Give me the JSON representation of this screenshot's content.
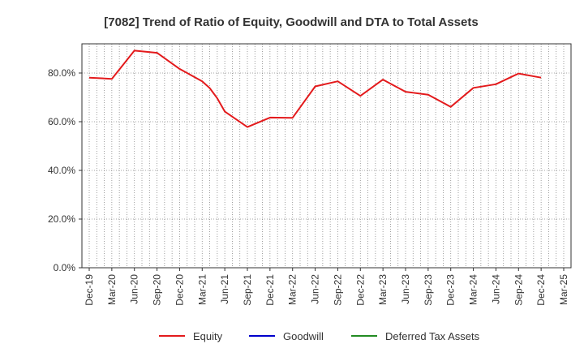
{
  "chart_data": {
    "type": "line",
    "title": "[7082]  Trend of Ratio of Equity, Goodwill and DTA to Total Assets",
    "xlabel": "",
    "ylabel": "",
    "ylim": [
      0,
      92
    ],
    "y_ticks": [
      "0.0%",
      "20.0%",
      "40.0%",
      "60.0%",
      "80.0%"
    ],
    "y_tick_values": [
      0,
      20,
      40,
      60,
      80
    ],
    "x_tick_labels": [
      "Dec-19",
      "Mar-20",
      "Jun-20",
      "Sep-20",
      "Dec-20",
      "Mar-21",
      "Jun-21",
      "Sep-21",
      "Dec-21",
      "Mar-22",
      "Jun-22",
      "Sep-22",
      "Dec-22",
      "Mar-23",
      "Jun-23",
      "Sep-23",
      "Dec-23",
      "Mar-24",
      "Jun-24",
      "Sep-24",
      "Dec-24",
      "Mar-25"
    ],
    "grid": true,
    "legend_position": "bottom",
    "series": [
      {
        "name": "Equity",
        "color": "#e31a1c",
        "points": [
          [
            "Dec-19",
            78.1
          ],
          [
            "Mar-20",
            77.6
          ],
          [
            "Jun-20",
            89.2
          ],
          [
            "Sep-20",
            88.3
          ],
          [
            "Dec-20",
            81.7
          ],
          [
            "Mar-21",
            76.6
          ],
          [
            "Apr-21",
            73.8
          ],
          [
            "May-21",
            69.6
          ],
          [
            "Jun-21",
            64.2
          ],
          [
            "Sep-21",
            57.8
          ],
          [
            "Dec-21",
            61.7
          ],
          [
            "Mar-22",
            61.6
          ],
          [
            "Jun-22",
            74.5
          ],
          [
            "Sep-22",
            76.6
          ],
          [
            "Dec-22",
            70.6
          ],
          [
            "Mar-23",
            77.3
          ],
          [
            "Jun-23",
            72.3
          ],
          [
            "Sep-23",
            71.1
          ],
          [
            "Dec-23",
            66.1
          ],
          [
            "Mar-24",
            73.9
          ],
          [
            "Jun-24",
            75.4
          ],
          [
            "Sep-24",
            79.8
          ],
          [
            "Dec-24",
            78.1
          ]
        ]
      },
      {
        "name": "Goodwill",
        "color": "#0000cc",
        "points": []
      },
      {
        "name": "Deferred Tax Assets",
        "color": "#228b22",
        "points": []
      }
    ]
  }
}
